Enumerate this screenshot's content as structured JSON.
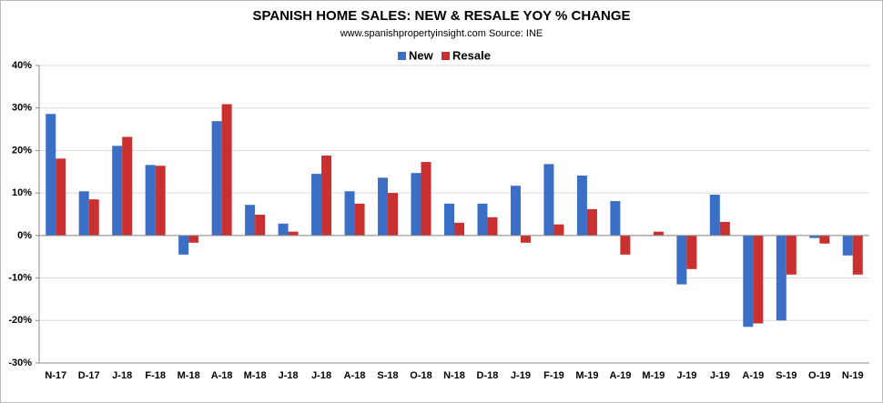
{
  "chart_data": {
    "type": "bar",
    "title": "SPANISH HOME SALES: NEW & RESALE YOY % CHANGE",
    "subtitle": "www.spanishpropertyinsight.com Source: INE",
    "categories": [
      "N-17",
      "D-17",
      "J-18",
      "F-18",
      "M-18",
      "A-18",
      "M-18",
      "J-18",
      "J-18",
      "A-18",
      "S-18",
      "O-18",
      "N-18",
      "D-18",
      "J-19",
      "F-19",
      "M-19",
      "A-19",
      "M-19",
      "J-19",
      "J-19",
      "A-19",
      "S-19",
      "O-19",
      "N-19"
    ],
    "series": [
      {
        "name": "New",
        "color": "#3b6fc6",
        "values": [
          28.6,
          10.4,
          21.1,
          16.6,
          -4.5,
          26.9,
          7.2,
          2.8,
          14.5,
          10.4,
          13.6,
          14.7,
          7.5,
          7.5,
          11.7,
          16.8,
          14.1,
          8.1,
          0.1,
          -11.5,
          9.6,
          -21.5,
          -20.0,
          -0.6,
          -4.7
        ]
      },
      {
        "name": "Resale",
        "color": "#c9302f",
        "values": [
          18.1,
          8.5,
          23.2,
          16.4,
          -1.7,
          30.9,
          4.9,
          0.9,
          18.8,
          7.5,
          10.0,
          17.3,
          3.0,
          4.3,
          -1.7,
          2.6,
          6.2,
          -4.5,
          0.9,
          -7.9,
          3.2,
          -20.7,
          -9.2,
          -1.9,
          -9.2
        ]
      }
    ],
    "ylim": [
      -30,
      40
    ],
    "yticks": [
      {
        "value": -30,
        "label": "-30%"
      },
      {
        "value": -20,
        "label": "-20%"
      },
      {
        "value": -10,
        "label": "-10%"
      },
      {
        "value": 0,
        "label": "0%"
      },
      {
        "value": 10,
        "label": "10%"
      },
      {
        "value": 20,
        "label": "20%"
      },
      {
        "value": 30,
        "label": "30%"
      },
      {
        "value": 40,
        "label": "40%"
      }
    ],
    "negative_tick_color": "#d00000",
    "grid": true,
    "legend": "top"
  }
}
